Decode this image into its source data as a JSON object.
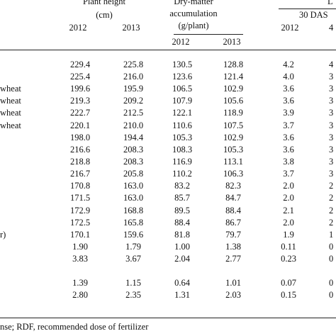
{
  "headers": {
    "plant_height": [
      "Plant height",
      "(cm)"
    ],
    "dry_matter": [
      "Dry-matter",
      "accumulation",
      "(g/plant)"
    ],
    "lai_top": "L",
    "lai_sub": "30 DAS",
    "years": [
      "2012",
      "2013"
    ],
    "lai_year_cut": "4"
  },
  "row_labels": [
    "",
    "",
    "wheat",
    "wheat",
    "wheat",
    "wheat",
    "",
    "",
    "",
    "",
    "",
    "",
    "",
    "",
    "r)",
    "",
    "",
    "",
    ""
  ],
  "rows": [
    [
      "229.4",
      "225.8",
      "130.5",
      "128.8",
      "4.2",
      "4"
    ],
    [
      "225.4",
      "216.0",
      "123.6",
      "121.4",
      "4.0",
      "3"
    ],
    [
      "199.6",
      "195.9",
      "106.5",
      "102.9",
      "3.6",
      "3"
    ],
    [
      "219.3",
      "209.2",
      "107.9",
      "105.6",
      "3.6",
      "3"
    ],
    [
      "222.7",
      "212.5",
      "122.1",
      "118.9",
      "3.9",
      "3"
    ],
    [
      "220.1",
      "210.0",
      "110.6",
      "107.5",
      "3.7",
      "3"
    ],
    [
      "198.0",
      "194.4",
      "105.3",
      "102.9",
      "3.6",
      "3"
    ],
    [
      "216.6",
      "208.3",
      "108.3",
      "105.3",
      "3.6",
      "3"
    ],
    [
      "218.8",
      "208.3",
      "116.9",
      "113.1",
      "3.8",
      "3"
    ],
    [
      "216.7",
      "205.8",
      "110.2",
      "106.3",
      "3.7",
      "3"
    ],
    [
      "170.8",
      "163.0",
      "83.2",
      "82.3",
      "2.0",
      "2"
    ],
    [
      "171.5",
      "163.0",
      "85.7",
      "84.7",
      "2.0",
      "2"
    ],
    [
      "172.9",
      "168.8",
      "89.5",
      "88.4",
      "2.1",
      "2"
    ],
    [
      "172.5",
      "165.8",
      "88.4",
      "86.7",
      "2.0",
      "2"
    ],
    [
      "170.1",
      "159.6",
      "81.8",
      "79.7",
      "1.9",
      "1"
    ],
    [
      "1.90",
      "1.79",
      "1.00",
      "1.38",
      "0.11",
      "0"
    ],
    [
      "3.83",
      "3.67",
      "2.04",
      "2.77",
      "0.23",
      "0"
    ],
    [
      "1.39",
      "1.15",
      "0.64",
      "1.01",
      "0.07",
      "0"
    ],
    [
      "2.80",
      "2.35",
      "1.31",
      "2.03",
      "0.15",
      "0"
    ]
  ],
  "footnote": "nse; RDF, recommended dose of fertilizer"
}
